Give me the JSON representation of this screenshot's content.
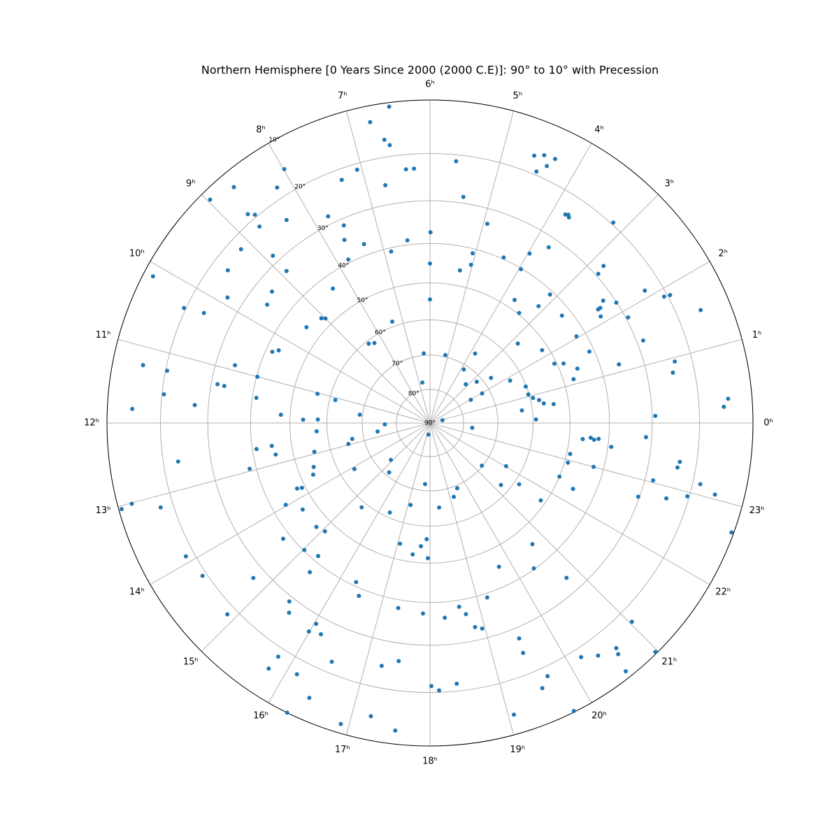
{
  "chart_data": {
    "type": "scatter",
    "projection": "polar",
    "radial_scale": "stereographic",
    "title": "Northern Hemisphere [0 Years Since 2000 (2000 C.E)]: 90° to 10° with Precession",
    "color": "#1f77b4",
    "grid": true,
    "xlim": [
      0,
      24
    ],
    "xticks": [
      {
        "value": 0,
        "label": "0ʰ"
      },
      {
        "value": 1,
        "label": "1ʰ"
      },
      {
        "value": 2,
        "label": "2ʰ"
      },
      {
        "value": 3,
        "label": "3ʰ"
      },
      {
        "value": 4,
        "label": "4ʰ"
      },
      {
        "value": 5,
        "label": "5ʰ"
      },
      {
        "value": 6,
        "label": "6ʰ"
      },
      {
        "value": 7,
        "label": "7ʰ"
      },
      {
        "value": 8,
        "label": "8ʰ"
      },
      {
        "value": 9,
        "label": "9ʰ"
      },
      {
        "value": 10,
        "label": "10ʰ"
      },
      {
        "value": 11,
        "label": "11ʰ"
      },
      {
        "value": 12,
        "label": "12ʰ"
      },
      {
        "value": 13,
        "label": "13ʰ"
      },
      {
        "value": 14,
        "label": "14ʰ"
      },
      {
        "value": 15,
        "label": "15ʰ"
      },
      {
        "value": 16,
        "label": "16ʰ"
      },
      {
        "value": 17,
        "label": "17ʰ"
      },
      {
        "value": 18,
        "label": "18ʰ"
      },
      {
        "value": 19,
        "label": "19ʰ"
      },
      {
        "value": 20,
        "label": "20ʰ"
      },
      {
        "value": 21,
        "label": "21ʰ"
      },
      {
        "value": 22,
        "label": "22ʰ"
      },
      {
        "value": 23,
        "label": "23ʰ"
      }
    ],
    "ylim": [
      90,
      10
    ],
    "yticks": [
      {
        "value": 90,
        "label": "90°"
      },
      {
        "value": 80,
        "label": "80°"
      },
      {
        "value": 70,
        "label": "70°"
      },
      {
        "value": 60,
        "label": "60°"
      },
      {
        "value": 50,
        "label": "50°"
      },
      {
        "value": 40,
        "label": "40°"
      },
      {
        "value": 30,
        "label": "30°"
      },
      {
        "value": 20,
        "label": "20°"
      },
      {
        "value": 10,
        "label": "10°"
      }
    ],
    "x": [
      0.31,
      0.21,
      1.51,
      0.94,
      0.78,
      1.87,
      1.89,
      2.11,
      0.12,
      23.75,
      1.41,
      1.15,
      1.87,
      2.19,
      3.17,
      2.81,
      2.77,
      2.35,
      2.27,
      2.27,
      2.13,
      1.61,
      1.35,
      1.13,
      1.6,
      1.7,
      2.04,
      2.61,
      3.13,
      2.2,
      3.14,
      3.73,
      3.97,
      3.96,
      3.4,
      3.7,
      2.81,
      1.86,
      1.39,
      1.08,
      0.91,
      0.79,
      0.65,
      0.58,
      0.52,
      0.13,
      4.4,
      4.93,
      5.06,
      5.03,
      5.26,
      5.44,
      5.62,
      4.58,
      4.46,
      4.47,
      4.37,
      4.31,
      3.8,
      3.73,
      3.76,
      5.99,
      6,
      6,
      6.34,
      6.71,
      5.15,
      3.85,
      3.8,
      3.15,
      2.76,
      2.43,
      1.97,
      1.97,
      0.84,
      6.49,
      6.75,
      6.61,
      6.55,
      6.36,
      6.24,
      7.07,
      7.33,
      6.71,
      6.47,
      6.85,
      7.75,
      7.57,
      7.67,
      7.35,
      7.77,
      8.39,
      7.36,
      8.51,
      8.32,
      9.07,
      9,
      9.48,
      7.99,
      8.2,
      8.35,
      8.89,
      8.88,
      8.74,
      8.67,
      8.73,
      8.65,
      8.97,
      9.16,
      9.53,
      9.88,
      9.35,
      9.6,
      10.38,
      10.29,
      10.14,
      10.33,
      10.27,
      10.9,
      11,
      11.24,
      11.25,
      11.59,
      11.82,
      11.71,
      11.31,
      11.32,
      11.45,
      11.79,
      11.9,
      11.88,
      11.03,
      11.09,
      12.28,
      11.55,
      12.12,
      12.61,
      12.77,
      12.96,
      12.93,
      13.38,
      13.59,
      14.09,
      14.89,
      15.36,
      15.4,
      16.39,
      17.11,
      17.69,
      17.5,
      12.57,
      12.55,
      12.77,
      12.95,
      12.58,
      13.01,
      13.04,
      13.16,
      13.91,
      14.26,
      14.89,
      14.75,
      14.55,
      13.97,
      13.75,
      13.79,
      14.28,
      14.83,
      15.06,
      15.02,
      15.33,
      15.41,
      15.45,
      15.56,
      16.03,
      15.99,
      16.18,
      15.8,
      15.78,
      16.14,
      16.42,
      16.25,
      16.51,
      16.34,
      16.51,
      17.25,
      17.5,
      17.35,
      17.07,
      17.5,
      17.72,
      17.89,
      17.94,
      17.24,
      17.57,
      16.9,
      18.02,
      18.13,
      18.39,
      17.86,
      18.29,
      18.6,
      18.71,
      18.83,
      18.95,
      19.21,
      18.41,
      19.19,
      19.51,
      21.37,
      23.57,
      21.26,
      22.03,
      21.7,
      21.67,
      22.5,
      22.93,
      23.17,
      22.35,
      23.6,
      23.65,
      23.61,
      23.64,
      23,
      23.5,
      19.71,
      19.5,
      19.47,
      20.68,
      20.37,
      20.76,
      19.66,
      19.53,
      19.07,
      19.77,
      20.19,
      20.39,
      20.64,
      20.61,
      20.55,
      21.03,
      20.97,
      22.7,
      23.04,
      22.82,
      23.32,
      23.41,
      22.94,
      23.15,
      23.06,
      22.67
    ],
    "values": [
      14.3,
      15.2,
      15.4,
      23.5,
      24.4,
      19.5,
      20.7,
      23.5,
      29.3,
      31.3,
      28.6,
      35.6,
      29.5,
      30.1,
      19.6,
      27.4,
      29.4,
      32.3,
      33.8,
      34.4,
      34.8,
      41.2,
      45.6,
      47.4,
      48.4,
      50.6,
      42.3,
      42.3,
      40.9,
      51.7,
      45,
      32.3,
      35.9,
      40.2,
      49.6,
      47.6,
      55.8,
      63.5,
      60.2,
      60.2,
      59.2,
      57.7,
      56.6,
      54,
      62.9,
      59.2,
      39.6,
      33.4,
      41.1,
      44,
      46,
      28.6,
      21.3,
      16.6,
      15.8,
      19.3,
      17.5,
      15.6,
      24.3,
      24.4,
      24.0,
      37.3,
      45,
      54.4,
      69.4,
      77.8,
      69.5,
      71.3,
      65.7,
      74.4,
      71.6,
      67.7,
      72.3,
      76.1,
      86.2,
      10.7,
      12.9,
      16.6,
      17.8,
      23,
      23,
      21.2,
      22.2,
      25.7,
      38.9,
      40.9,
      28.2,
      31.5,
      34.6,
      37.3,
      39.2,
      43.4,
      58.6,
      60.8,
      61.6,
      47.2,
      48,
      45.8,
      15.5,
      17.8,
      24.3,
      33,
      28.4,
      18.5,
      19.5,
      21.9,
      12.9,
      11.7,
      22.6,
      23.3,
      26.5,
      33.8,
      34.8,
      41.6,
      42.9,
      11.7,
      19.6,
      23.7,
      34.3,
      40.2,
      15.5,
      20.3,
      20.4,
      14.5,
      27,
      31.4,
      33,
      41,
      47.6,
      53.5,
      57.5,
      56.4,
      61.6,
      57.1,
      69.2,
      76.6,
      74.3,
      66.7,
      65.3,
      55.6,
      54.2,
      53.3,
      64.1,
      74.1,
      71.1,
      58.5,
      61.4,
      65.3,
      71.9,
      86.5,
      41,
      44.9,
      45.5,
      38.4,
      23,
      12.5,
      10.5,
      17.5,
      18.3,
      19.1,
      18.2,
      27.2,
      38.2,
      43.4,
      47.9,
      49.1,
      46.4,
      46.4,
      47.2,
      40.2,
      41.4,
      37.1,
      28.9,
      26.9,
      28.1,
      25.9,
      26.6,
      18.2,
      15.3,
      17.1,
      14.1,
      10,
      22.3,
      41,
      38.2,
      24.5,
      26.1,
      38,
      54.2,
      52,
      54.4,
      56.4,
      51.3,
      14.3,
      12.4,
      11.6,
      21.3,
      20.4,
      21.5,
      37.3,
      36.2,
      38.4,
      36.4,
      33,
      32.3,
      39,
      65.1,
      67.2,
      69.2,
      70.2,
      77.4,
      62.5,
      64.4,
      58.6,
      51.3,
      50,
      49.1,
      49.1,
      45.5,
      46.5,
      44.5,
      43.6,
      42.5,
      42.5,
      39.2,
      45,
      27.6,
      24.4,
      45.2,
      40.2,
      33.6,
      18.1,
      16.4,
      13.5,
      10.2,
      18.2,
      16.6,
      15.6,
      14.5,
      11.2,
      17.3,
      10.3,
      30.3,
      28.2,
      24.4,
      23.7,
      23.4,
      20.4,
      18.5,
      15.3,
      10.4
    ]
  }
}
